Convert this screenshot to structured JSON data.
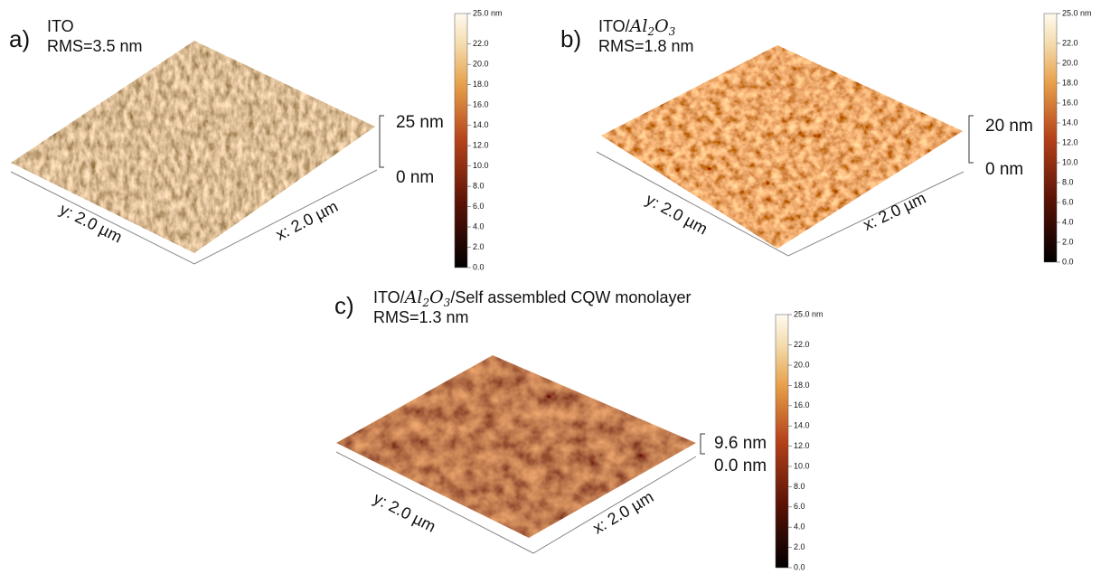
{
  "panels": [
    {
      "label": "a)",
      "title": {
        "prefix": "ITO",
        "formula": [],
        "suffix": ""
      },
      "rms": "RMS=3.5 nm",
      "z_top": "25 nm",
      "z_bottom": "0 nm",
      "y_axis": "y: 2.0 µm",
      "x_axis": "x: 2.0 µm",
      "colorbar": [
        "25.0 nm",
        "22.0",
        "20.0",
        "18.0",
        "16.0",
        "14.0",
        "12.0",
        "10.0",
        "8.0",
        "6.0",
        "4.0",
        "2.0",
        "0.0"
      ]
    },
    {
      "label": "b)",
      "title": {
        "prefix": "ITO/",
        "formula": [
          {
            "t": "Al",
            "sub": "2"
          },
          {
            "t": "O",
            "sub": "3"
          }
        ],
        "suffix": ""
      },
      "rms": "RMS=1.8 nm",
      "z_top": "20 nm",
      "z_bottom": "0 nm",
      "y_axis": "y: 2.0 µm",
      "x_axis": "x: 2.0 µm",
      "colorbar": [
        "25.0 nm",
        "22.0",
        "20.0",
        "18.0",
        "16.0",
        "14.0",
        "12.0",
        "10.0",
        "8.0",
        "6.0",
        "4.0",
        "2.0",
        "0.0"
      ]
    },
    {
      "label": "c)",
      "title": {
        "prefix": "ITO/",
        "formula": [
          {
            "t": "Al",
            "sub": "2"
          },
          {
            "t": "O",
            "sub": "3"
          }
        ],
        "suffix": "/Self assembled CQW monolayer"
      },
      "rms": "RMS=1.3 nm",
      "z_top": "9.6 nm",
      "z_bottom": "0.0 nm",
      "y_axis": "y: 2.0 µm",
      "x_axis": "x: 2.0 µm",
      "colorbar": [
        "25.0 nm",
        "22.0",
        "20.0",
        "18.0",
        "16.0",
        "14.0",
        "12.0",
        "10.0",
        "8.0",
        "6.0",
        "4.0",
        "2.0",
        "0.0"
      ]
    }
  ]
}
